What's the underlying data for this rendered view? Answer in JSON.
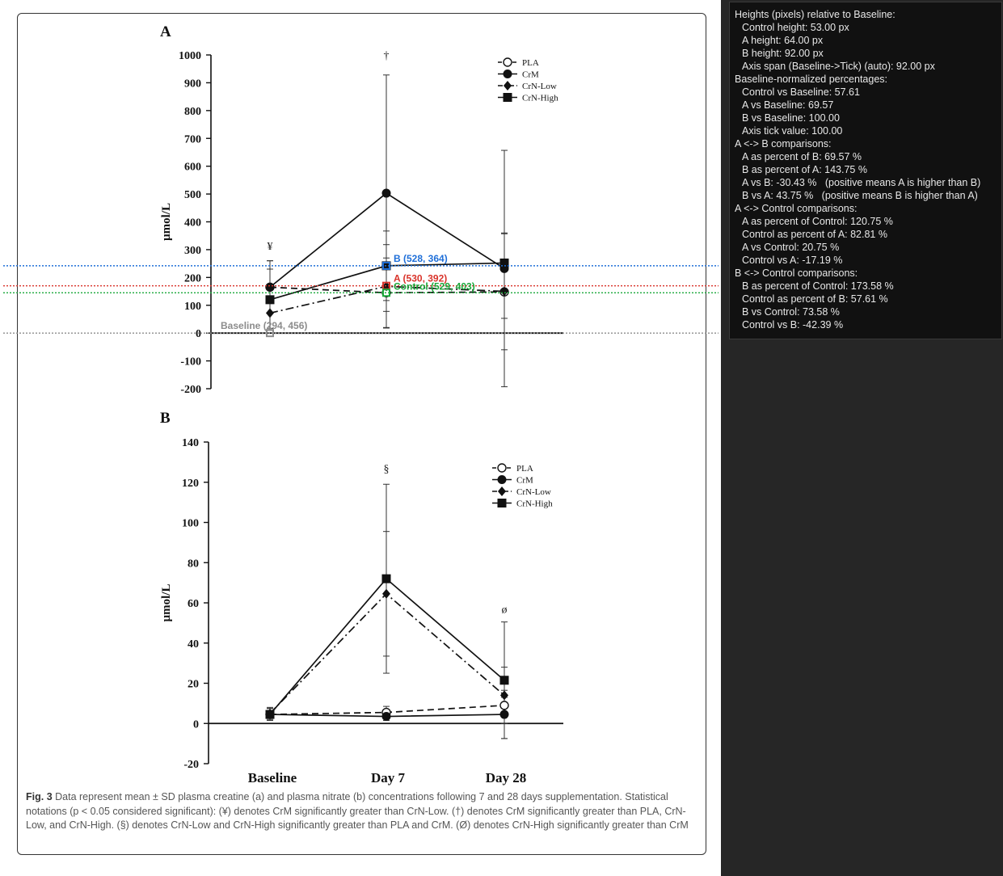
{
  "figure": {
    "caption_bold": "Fig. 3",
    "caption_text": " Data represent mean ± SD plasma creatine (a) and plasma nitrate (b) concentrations following 7 and 28 days supplementation. Statistical notations (p < 0.05 considered significant): (¥) denotes CrM significantly greater than CrN-Low. (†) denotes CrM significantly greater than PLA, CrN-Low, and CrN-High. (§) denotes CrN-Low and CrN-High significantly greater than PLA and CrM. (Ø) denotes CrN-High significantly greater than CrM"
  },
  "colors": {
    "blue": "#1f6fd8",
    "red": "#d9342b",
    "green": "#1aa83a",
    "gray": "#8c8c8c",
    "ink": "#111111"
  },
  "chart_data": [
    {
      "type": "line",
      "panel_label": "A",
      "ylabel": "µmol/L",
      "ylim": [
        -200,
        1000
      ],
      "yticks": [
        -200,
        -100,
        0,
        100,
        200,
        300,
        400,
        500,
        600,
        700,
        800,
        900,
        1000
      ],
      "categories": [
        "Baseline",
        "Day 7",
        "Day 28"
      ],
      "series": [
        {
          "name": "PLA",
          "marker": "circle-open",
          "dash": "dashed",
          "values": [
            165,
            145,
            148
          ],
          "sd": [
            95,
            125,
            95
          ]
        },
        {
          "name": "CrM",
          "marker": "circle",
          "dash": "solid",
          "values": [
            165,
            503,
            232
          ],
          "sd": [
            95,
            425,
            425
          ]
        },
        {
          "name": "CrN-Low",
          "marker": "diamond",
          "dash": "dashdot",
          "values": [
            72,
            168,
            150
          ],
          "sd": [
            55,
            150,
            210
          ]
        },
        {
          "name": "CrN-High",
          "marker": "square",
          "dash": "solid",
          "values": [
            120,
            242,
            252
          ],
          "sd": [
            110,
            125,
            105
          ]
        }
      ],
      "annotations": [
        {
          "text": "¥",
          "category": "Baseline",
          "y": 300
        },
        {
          "text": "†",
          "category": "Day 7",
          "y": 985
        }
      ],
      "overlay": {
        "markers": [
          {
            "label": "B (528, 364)",
            "key": "blue",
            "category": "Day 7",
            "y": 242
          },
          {
            "label": "A (530, 392)",
            "key": "red",
            "category": "Day 7",
            "y": 170
          },
          {
            "label": "Control (529, 403)",
            "key": "green",
            "category": "Day 7",
            "y": 145
          },
          {
            "label": "Baseline (294, 456)",
            "key": "gray",
            "category": "Baseline",
            "y": 0
          }
        ]
      }
    },
    {
      "type": "line",
      "panel_label": "B",
      "ylabel": "µmol/L",
      "ylim": [
        -20,
        140
      ],
      "yticks": [
        -20,
        0,
        20,
        40,
        60,
        80,
        100,
        120,
        140
      ],
      "categories": [
        "Baseline",
        "Day 7",
        "Day 28"
      ],
      "series": [
        {
          "name": "PLA",
          "marker": "circle-open",
          "dash": "dashed",
          "values": [
            4.5,
            5.5,
            9
          ],
          "sd": [
            3,
            3,
            4
          ]
        },
        {
          "name": "CrM",
          "marker": "circle",
          "dash": "solid",
          "values": [
            4.5,
            3.5,
            4.5
          ],
          "sd": [
            3,
            2,
            12
          ]
        },
        {
          "name": "CrN-Low",
          "marker": "diamond",
          "dash": "dashdot",
          "values": [
            5,
            64.5,
            14
          ],
          "sd": [
            3,
            31,
            14
          ]
        },
        {
          "name": "CrN-High",
          "marker": "square",
          "dash": "solid",
          "values": [
            4.5,
            72,
            21.5
          ],
          "sd": [
            3,
            47,
            29
          ]
        }
      ],
      "annotations": [
        {
          "text": "§",
          "category": "Day 7",
          "y": 125
        },
        {
          "text": "ø",
          "category": "Day 28",
          "y": 55
        }
      ]
    }
  ],
  "info_panel": {
    "lines": [
      {
        "t": "Heights (pixels) relative to Baseline:",
        "i": false
      },
      {
        "t": "Control height: 53.00 px",
        "i": true
      },
      {
        "t": "A height: 64.00 px",
        "i": true
      },
      {
        "t": "B height: 92.00 px",
        "i": true
      },
      {
        "t": "Axis span (Baseline->Tick) (auto): 92.00 px",
        "i": true
      },
      {
        "t": "Baseline-normalized percentages:",
        "i": false
      },
      {
        "t": "Control vs Baseline: 57.61",
        "i": true
      },
      {
        "t": "A vs Baseline: 69.57",
        "i": true
      },
      {
        "t": "B vs Baseline: 100.00",
        "i": true
      },
      {
        "t": "Axis tick value: 100.00",
        "i": true
      },
      {
        "t": "A <-> B comparisons:",
        "i": false
      },
      {
        "t": "A as percent of B: 69.57 %",
        "i": true
      },
      {
        "t": "B as percent of A: 143.75 %",
        "i": true
      },
      {
        "t": "A vs B: -30.43 %   (positive means A is higher than B)",
        "i": true
      },
      {
        "t": "B vs A: 43.75 %   (positive means B is higher than A)",
        "i": true
      },
      {
        "t": "A <-> Control comparisons:",
        "i": false
      },
      {
        "t": "A as percent of Control: 120.75 %",
        "i": true
      },
      {
        "t": "Control as percent of A: 82.81 %",
        "i": true
      },
      {
        "t": "A vs Control: 20.75 %",
        "i": true
      },
      {
        "t": "Control vs A: -17.19 %",
        "i": true
      },
      {
        "t": "B <-> Control comparisons:",
        "i": false
      },
      {
        "t": "B as percent of Control: 173.58 %",
        "i": true
      },
      {
        "t": "Control as percent of B: 57.61 %",
        "i": true
      },
      {
        "t": "B vs Control: 73.58 %",
        "i": true
      },
      {
        "t": "Control vs B: -42.39 %",
        "i": true
      }
    ]
  }
}
